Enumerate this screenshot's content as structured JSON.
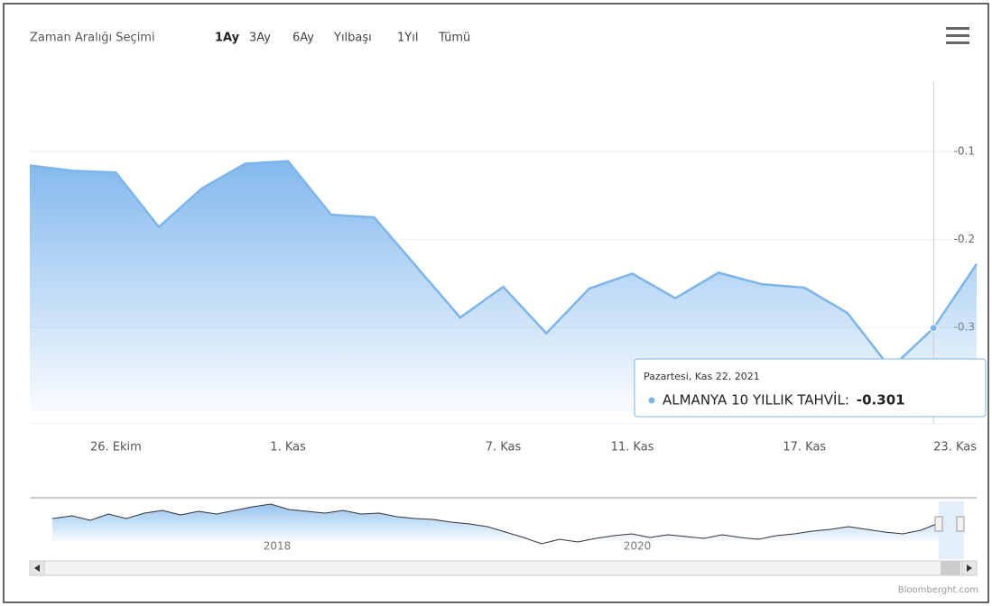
{
  "chart_data": {
    "type": "area",
    "range_selector": {
      "label": "Zaman Aralığı Seçimi",
      "buttons": [
        "1Ay",
        "3Ay",
        "6Ay",
        "Yılbaşı",
        "1Yıl",
        "Tümü"
      ],
      "selected": 0
    },
    "categories": [
      null,
      null,
      "26. Ekim",
      null,
      null,
      null,
      "1. Kas",
      null,
      null,
      null,
      null,
      "7. Kas",
      null,
      null,
      "11. Kas",
      null,
      null,
      null,
      "17. Kas",
      null,
      null,
      null,
      "23. Kas"
    ],
    "values": [
      -0.116,
      -0.122,
      -0.124,
      -0.186,
      -0.142,
      -0.114,
      -0.111,
      -0.172,
      -0.175,
      -0.232,
      -0.289,
      -0.254,
      -0.307,
      -0.256,
      -0.239,
      -0.267,
      -0.238,
      -0.251,
      -0.255,
      -0.284,
      -0.347,
      -0.301,
      -0.228
    ],
    "color": "#7cb5ec",
    "ylim": [
      -0.41,
      -0.02
    ],
    "yticks": [
      -0.1,
      -0.2,
      -0.3
    ],
    "grid": true,
    "tooltip": {
      "index": 21,
      "header": "Pazartesi, Kas 22, 2021",
      "label": "ALMANYA 10 YILLIK TAHVİL:"
    },
    "navigator": {
      "labels": [
        "2018",
        "2020"
      ]
    },
    "credits": "Bloomberght.com"
  }
}
